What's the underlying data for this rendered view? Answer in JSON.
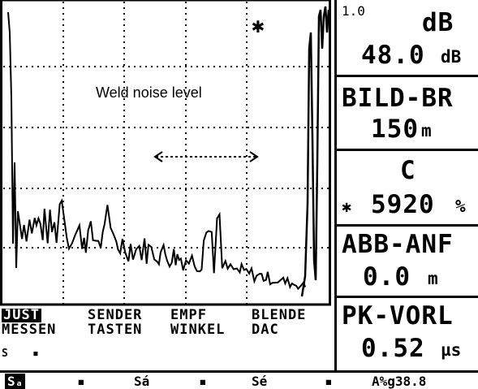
{
  "scan": {
    "annotation": "Weld noise level",
    "marker_symbol": "✱"
  },
  "readouts": {
    "gain": {
      "step": "1.0",
      "unit_label": "dB",
      "value": "48.0",
      "value_unit": "dB"
    },
    "range": {
      "label": "BILD-BR",
      "value": "150",
      "value_unit": "m"
    },
    "velocity": {
      "label": "C",
      "marker": "✱",
      "value": "5920",
      "value_unit": "%"
    },
    "delay": {
      "label": "ABB-ANF",
      "value": "0.0",
      "value_unit": "m"
    },
    "probe_delay": {
      "label": "PK-VORL",
      "value": "0.52",
      "value_unit": "µs"
    }
  },
  "menu": {
    "row1": [
      "JUST",
      "SENDER",
      "EMPF",
      "BLENDE"
    ],
    "row2": [
      "MESSEN",
      "TASTEN",
      "WINKEL",
      "DAC"
    ],
    "selected_index": 0,
    "row3_left": "S",
    "row3_mark": "▪"
  },
  "status": {
    "cells": [
      "Sₐ",
      "▪",
      "Sá",
      "▪",
      "Sé",
      "▪",
      "A%g38.8"
    ]
  },
  "colors": {
    "fg": "#000000",
    "bg": "#ffffff"
  }
}
